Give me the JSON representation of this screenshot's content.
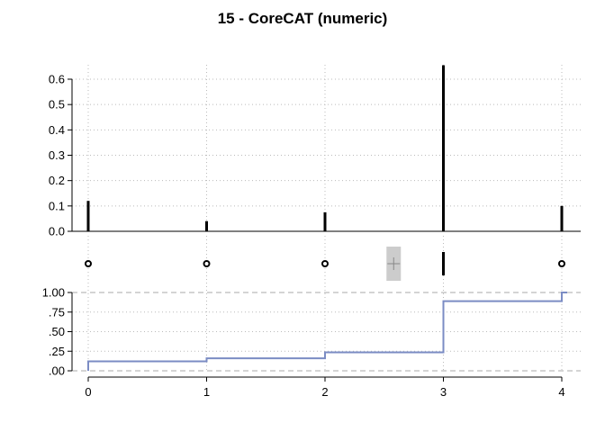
{
  "chart_data": [
    {
      "type": "bar",
      "title": "15 - CoreCAT (numeric)",
      "xlabel": "",
      "ylabel": "",
      "x": [
        0,
        1,
        2,
        3,
        4
      ],
      "values": [
        0.12,
        0.04,
        0.075,
        0.655,
        0.1
      ],
      "xlim": [
        0,
        4
      ],
      "ylim": [
        0,
        0.65
      ],
      "yticks": [
        0.0,
        0.1,
        0.2,
        0.3,
        0.4,
        0.5,
        0.6
      ],
      "ytick_labels": [
        "0.0",
        "0.1",
        "0.2",
        "0.3",
        "0.4",
        "0.5",
        "0.6"
      ],
      "grid": true,
      "bar_color": "#000000"
    },
    {
      "type": "boxplot",
      "x": [
        0,
        1,
        2,
        3,
        4
      ],
      "outliers": [
        0,
        1,
        2,
        4
      ],
      "median": 3,
      "mean": 2.58,
      "box_color": "#cccccc"
    },
    {
      "type": "line",
      "subtype": "step-ecdf",
      "x": [
        0,
        1,
        2,
        3,
        4
      ],
      "values": [
        0.12,
        0.16,
        0.235,
        0.89,
        1.0
      ],
      "xticks": [
        0,
        1,
        2,
        3,
        4
      ],
      "xtick_labels": [
        "0",
        "1",
        "2",
        "3",
        "4"
      ],
      "ylim": [
        0,
        1
      ],
      "yticks": [
        0,
        0.25,
        0.5,
        0.75,
        1.0
      ],
      "ytick_labels": [
        ".00",
        ".25",
        ".50",
        ".75",
        "1.00"
      ],
      "grid": true,
      "line_color": "#7b8cc4",
      "reference_color": "#bbbbbb"
    }
  ]
}
